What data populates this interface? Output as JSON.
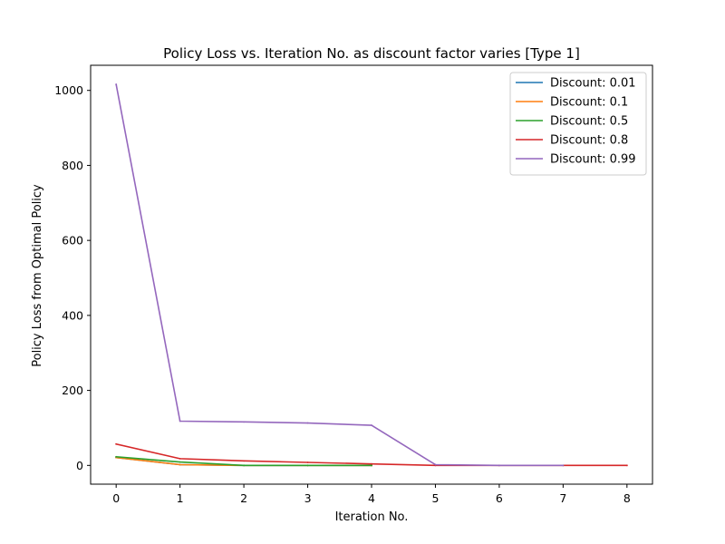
{
  "chart_data": {
    "type": "line",
    "title": "Policy Loss vs. Iteration No. as discount factor varies [Type 1]",
    "xlabel": "Iteration No.",
    "ylabel": "Policy Loss from Optimal Policy",
    "xlim": [
      -0.4,
      8.4
    ],
    "ylim": [
      -50,
      1067
    ],
    "xticks": [
      0,
      1,
      2,
      3,
      4,
      5,
      6,
      7,
      8
    ],
    "yticks": [
      0,
      200,
      400,
      600,
      800,
      1000
    ],
    "grid": false,
    "legend_position": "top-right",
    "series": [
      {
        "name": "Discount: 0.01",
        "color": "#1f77b4",
        "x": [
          0,
          1,
          2,
          3,
          4
        ],
        "y": [
          21,
          2,
          0,
          0,
          0
        ]
      },
      {
        "name": "Discount: 0.1",
        "color": "#ff7f0e",
        "x": [
          0,
          1,
          2,
          3,
          4
        ],
        "y": [
          21,
          2,
          0,
          0,
          0
        ]
      },
      {
        "name": "Discount: 0.5",
        "color": "#2ca02c",
        "x": [
          0,
          1,
          2,
          3,
          4
        ],
        "y": [
          23,
          9,
          0,
          0,
          0
        ]
      },
      {
        "name": "Discount: 0.8",
        "color": "#d62728",
        "x": [
          0,
          1,
          2,
          3,
          4,
          5,
          6,
          7,
          8
        ],
        "y": [
          57,
          18,
          12,
          8,
          4,
          0,
          0,
          0,
          0
        ]
      },
      {
        "name": "Discount: 0.99",
        "color": "#9467bd",
        "x": [
          0,
          1,
          2,
          3,
          4,
          5,
          6,
          7
        ],
        "y": [
          1016,
          118,
          116,
          113,
          107,
          2,
          0,
          0
        ]
      }
    ]
  }
}
